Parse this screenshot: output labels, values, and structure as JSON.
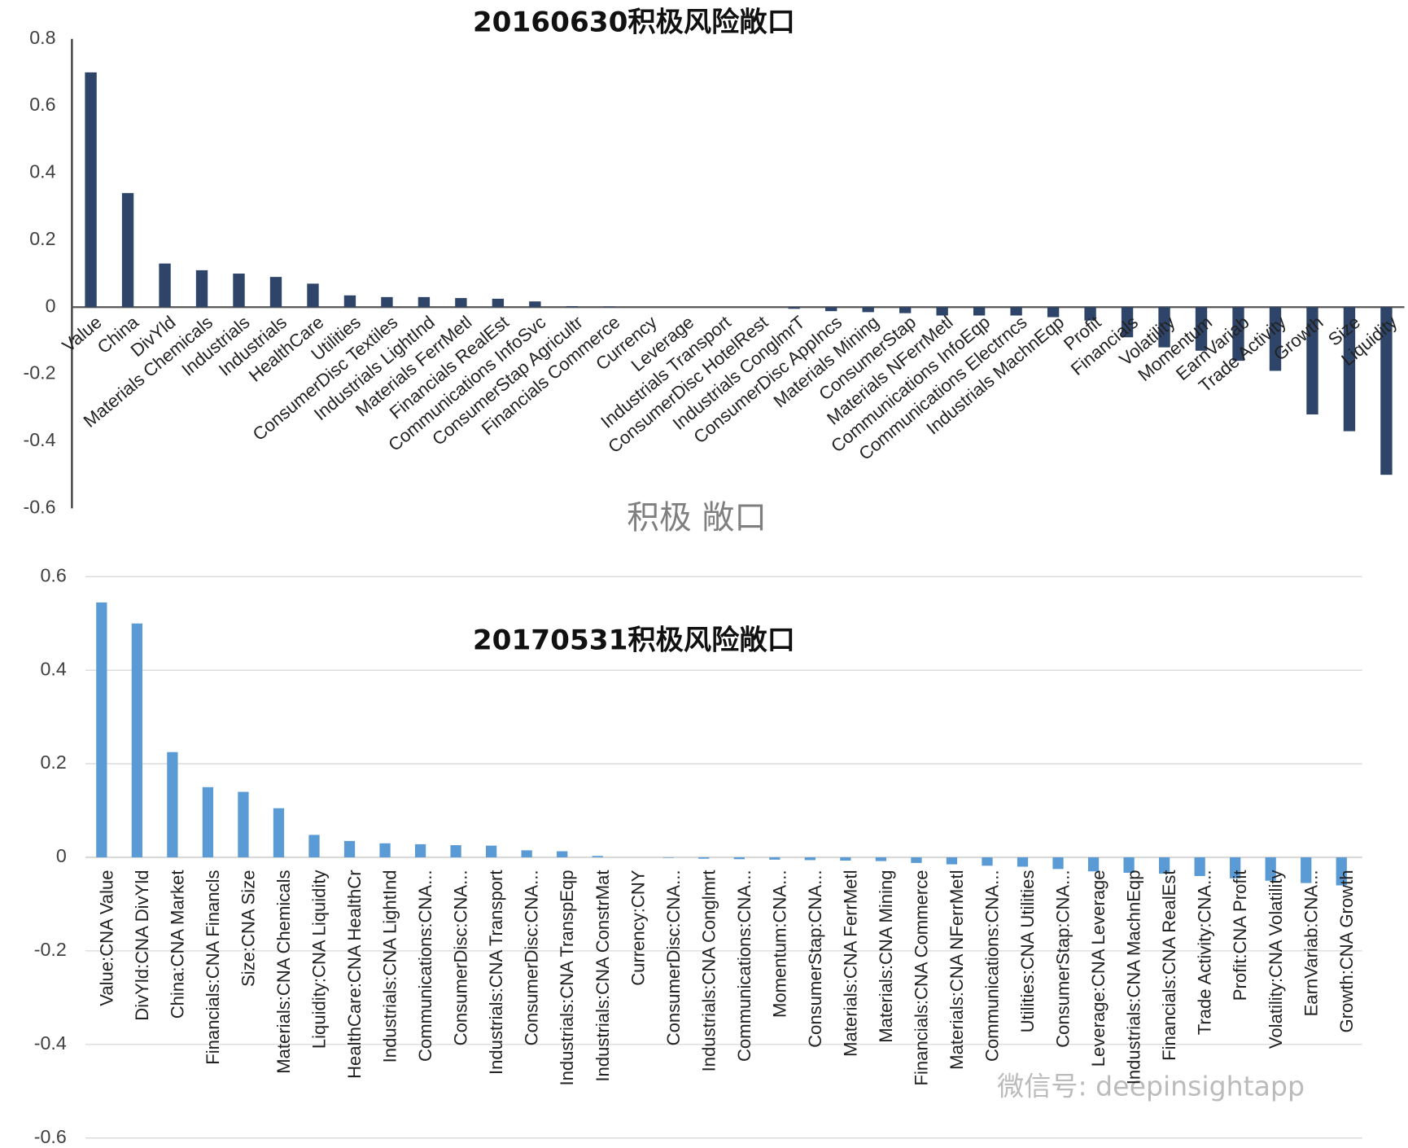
{
  "chart_data": [
    {
      "type": "bar",
      "title": "20160630积极风险敞口",
      "x_label": "积极 敞口",
      "color": "#2e4468",
      "grid": false,
      "ylim": [
        -0.6,
        0.8
      ],
      "yticks": [
        -0.6,
        -0.4,
        -0.2,
        0,
        0.2,
        0.4,
        0.6,
        0.8
      ],
      "categories": [
        "Value",
        "China",
        "DivYld",
        "Materials Chemicals",
        "Industrials",
        "Industrials",
        "HealthCare",
        "Utilities",
        "ConsumerDisc Textiles",
        "Industrials LightInd",
        "Materials FerrMetl",
        "Financials RealEst",
        "Communications InfoSvc",
        "ConsumerStap Agricultr",
        "Financials Commerce",
        "Currency",
        "Leverage",
        "Industrials Transport",
        "ConsumerDisc HotelRest",
        "Industrials ConglmrT",
        "ConsumerDisc AppIncs",
        "Materials Mining",
        "ConsumerStap",
        "Materials NFerrMetl",
        "Communications InfoEqp",
        "Communications Electrncs",
        "Industrials MachnEqp",
        "Profit",
        "Financials",
        "Volatility",
        "Momentum",
        "EarnVariab",
        "Trade Activity",
        "Growth",
        "Size",
        "Liquidity"
      ],
      "values": [
        0.7,
        0.34,
        0.13,
        0.11,
        0.1,
        0.09,
        0.07,
        0.035,
        0.03,
        0.03,
        0.027,
        0.025,
        0.017,
        0.003,
        0.002,
        0,
        0,
        0,
        0,
        -0.005,
        -0.012,
        -0.015,
        -0.018,
        -0.025,
        -0.025,
        -0.025,
        -0.03,
        -0.04,
        -0.09,
        -0.12,
        -0.13,
        -0.16,
        -0.19,
        -0.32,
        -0.37,
        -0.5
      ]
    },
    {
      "type": "bar",
      "title": "20170531积极风险敞口",
      "color": "#5b9bd5",
      "grid": true,
      "ylim": [
        -0.6,
        0.6
      ],
      "yticks": [
        -0.6,
        -0.4,
        -0.2,
        0,
        0.2,
        0.4,
        0.6
      ],
      "categories": [
        "Value:CNA Value",
        "DivYld:CNA DivYld",
        "China:CNA Market",
        "Financials:CNA Financls",
        "Size:CNA Size",
        "Materials:CNA Chemicals",
        "Liquidity:CNA Liquidity",
        "HealthCare:CNA HealthCr",
        "Industrials:CNA LightInd",
        "Communications:CNA...",
        "ConsumerDisc:CNA...",
        "Industrials:CNA Transport",
        "ConsumerDisc:CNA...",
        "Industrials:CNA TranspEqp",
        "Industrials:CNA ConstrMat",
        "Currency:CNY",
        "ConsumerDisc:CNA...",
        "Industrials:CNA Conglmrt",
        "Communications:CNA...",
        "Momentum:CNA...",
        "ConsumerStap:CNA...",
        "Materials:CNA FerrMetl",
        "Materials:CNA Mining",
        "Financials:CNA Commerce",
        "Materials:CNA NFerrMetl",
        "Communications:CNA...",
        "Utilities:CNA Utilities",
        "ConsumerStap:CNA...",
        "Leverage:CNA Leverage",
        "Industrials:CNA MachnEqp",
        "Financials:CNA RealEst",
        "Trade Activity:CNA...",
        "Profit:CNA Profit",
        "Volatility:CNA Volatility",
        "EarnVariab:CNA...",
        "Growth:CNA Growth"
      ],
      "values": [
        0.545,
        0.5,
        0.225,
        0.15,
        0.14,
        0.105,
        0.048,
        0.035,
        0.03,
        0.028,
        0.026,
        0.025,
        0.015,
        0.013,
        0.003,
        0,
        -0.001,
        -0.003,
        -0.004,
        -0.005,
        -0.006,
        -0.007,
        -0.008,
        -0.012,
        -0.015,
        -0.018,
        -0.02,
        -0.025,
        -0.03,
        -0.033,
        -0.035,
        -0.04,
        -0.045,
        -0.05,
        -0.055,
        -0.06
      ]
    }
  ],
  "watermark": "微信号: deepinsightapp"
}
